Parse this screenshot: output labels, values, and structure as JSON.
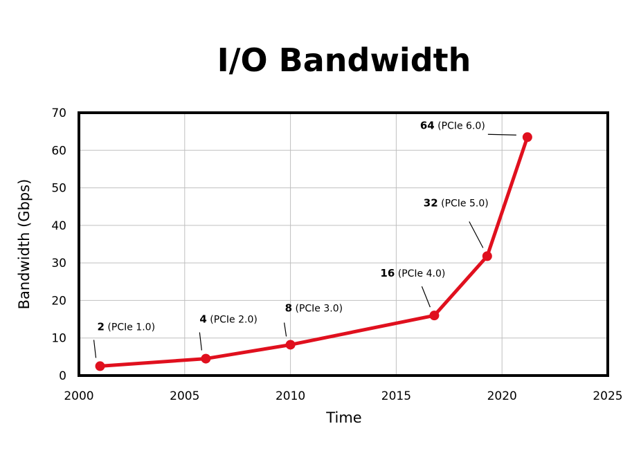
{
  "chart_data": {
    "type": "line",
    "title": "I/O Bandwidth",
    "xlabel": "Time",
    "ylabel": "Bandwidth (Gbps)",
    "xlim": [
      2000,
      2025
    ],
    "ylim": [
      0,
      70
    ],
    "x_ticks": [
      "2000",
      "2005",
      "2010",
      "2015",
      "2020",
      "2025"
    ],
    "y_ticks": [
      "0",
      "10",
      "20",
      "30",
      "40",
      "50",
      "60",
      "70"
    ],
    "grid": true,
    "series": [
      {
        "color": "#e0101e",
        "points": [
          {
            "x": 2001.0,
            "y": 2.5,
            "value": "2",
            "label": "(PCIe 1.0)"
          },
          {
            "x": 2006.0,
            "y": 4.5,
            "value": "4",
            "label": "(PCIe 2.0)"
          },
          {
            "x": 2010.0,
            "y": 8.2,
            "value": "8",
            "label": "(PCIe 3.0)"
          },
          {
            "x": 2016.8,
            "y": 16.0,
            "value": "16",
            "label": "(PCIe 4.0)"
          },
          {
            "x": 2019.3,
            "y": 31.8,
            "value": "32",
            "label": "(PCIe 5.0)"
          },
          {
            "x": 2021.2,
            "y": 63.5,
            "value": "64",
            "label": "(PCIe 6.0)"
          }
        ]
      }
    ]
  }
}
